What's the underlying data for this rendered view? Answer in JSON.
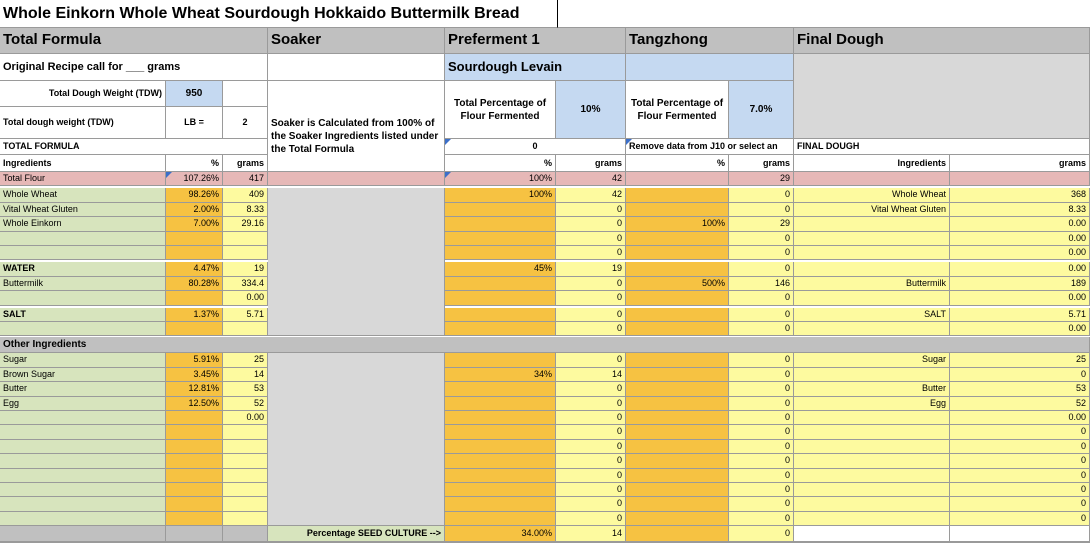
{
  "title": "Whole Einkorn Whole Wheat Sourdough Hokkaido Buttermilk Bread",
  "sections": {
    "total_formula": "Total Formula",
    "soaker": "Soaker",
    "preferment1": "Preferment 1",
    "tangzhong": "Tangzhong",
    "final_dough": "Final Dough"
  },
  "original_recipe": "Original Recipe call for ___ grams",
  "sourdough_levain": "Sourdough Levain",
  "tdw_label": "Total Dough Weight (TDW)",
  "tdw_value": "950",
  "tdw2_label": "Total dough weight (TDW)",
  "tdw2_unit": "LB =",
  "tdw2_value": "2",
  "soaker_note": "Soaker is Calculated from 100% of the Soaker Ingredients listed under the Total Formula",
  "pref_label": "Total Percentage of Flour Fermented",
  "pref_value": "10%",
  "tang_label": "Total Percentage of Flour Fermented",
  "tang_value": "7.0%",
  "total_formula_caps": "TOTAL FORMULA",
  "pref_zero": "0",
  "tang_note": "Remove data from J10 or select an",
  "final_caps": "FINAL DOUGH",
  "col": {
    "ingredients": "Ingredients",
    "pct": "%",
    "grams": "grams"
  },
  "total_flour": {
    "label": "Total Flour",
    "pct": "107.26%",
    "grams": "417",
    "p_pct": "100%",
    "p_grams": "42",
    "t_grams": "29"
  },
  "water": {
    "label": "WATER",
    "pct": "4.47%",
    "grams": "19",
    "p_pct": "45%",
    "p_grams": "19",
    "t_grams": "0",
    "f_grams": "0.00"
  },
  "salt": {
    "label": "SALT",
    "pct": "1.37%",
    "grams": "5.71",
    "p_grams": "0",
    "t_grams": "0",
    "f_name": "SALT",
    "f_grams": "5.71"
  },
  "other": "Other Ingredients",
  "seed_label": "Percentage SEED CULTURE  -->",
  "seed_pct": "34.00%",
  "seed_grams": "14",
  "seed_t": "0",
  "flour_rows": [
    {
      "name": "Whole Wheat",
      "pct": "98.26%",
      "g": "409",
      "pp": "100%",
      "pg": "42",
      "tp": "",
      "tg": "0",
      "fn": "Whole Wheat",
      "fg": "368"
    },
    {
      "name": "Vital Wheat Gluten",
      "pct": "2.00%",
      "g": "8.33",
      "pp": "",
      "pg": "0",
      "tp": "",
      "tg": "0",
      "fn": "Vital Wheat Gluten",
      "fg": "8.33"
    },
    {
      "name": "Whole Einkorn",
      "pct": "7.00%",
      "g": "29.16",
      "pp": "",
      "pg": "0",
      "tp": "100%",
      "tg": "29",
      "fn": "",
      "fg": "0.00"
    },
    {
      "name": "",
      "pct": "",
      "g": "",
      "pp": "",
      "pg": "0",
      "tp": "",
      "tg": "0",
      "fn": "",
      "fg": "0.00"
    },
    {
      "name": "",
      "pct": "",
      "g": "",
      "pp": "",
      "pg": "0",
      "tp": "",
      "tg": "0",
      "fn": "",
      "fg": "0.00"
    }
  ],
  "liquid_rows": [
    {
      "name": "Buttermilk",
      "pct": "80.28%",
      "g": "334.4",
      "pp": "",
      "pg": "0",
      "tp": "500%",
      "tg": "146",
      "fn": "Buttermilk",
      "fg": "189"
    },
    {
      "name": "",
      "pct": "",
      "g": "0.00",
      "pp": "",
      "pg": "0",
      "tp": "",
      "tg": "0",
      "fn": "",
      "fg": "0.00"
    }
  ],
  "salt_extra": {
    "pg": "0",
    "tg": "0",
    "fg": "0.00"
  },
  "other_rows": [
    {
      "name": "Sugar",
      "pct": "5.91%",
      "g": "25",
      "pp": "",
      "pg": "0",
      "tg": "0",
      "fn": "Sugar",
      "fg": "25"
    },
    {
      "name": "Brown Sugar",
      "pct": "3.45%",
      "g": "14",
      "pp": "34%",
      "pg": "14",
      "tg": "0",
      "fn": "",
      "fg": "0"
    },
    {
      "name": "Butter",
      "pct": "12.81%",
      "g": "53",
      "pp": "",
      "pg": "0",
      "tg": "0",
      "fn": "Butter",
      "fg": "53"
    },
    {
      "name": "Egg",
      "pct": "12.50%",
      "g": "52",
      "pp": "",
      "pg": "0",
      "tg": "0",
      "fn": "Egg",
      "fg": "52"
    },
    {
      "name": "",
      "pct": "",
      "g": "0.00",
      "pp": "",
      "pg": "0",
      "tg": "0",
      "fn": "",
      "fg": "0.00"
    },
    {
      "name": "",
      "pct": "",
      "g": "",
      "pp": "",
      "pg": "0",
      "tg": "0",
      "fn": "",
      "fg": "0"
    },
    {
      "name": "",
      "pct": "",
      "g": "",
      "pp": "",
      "pg": "0",
      "tg": "0",
      "fn": "",
      "fg": "0"
    },
    {
      "name": "",
      "pct": "",
      "g": "",
      "pp": "",
      "pg": "0",
      "tg": "0",
      "fn": "",
      "fg": "0"
    },
    {
      "name": "",
      "pct": "",
      "g": "",
      "pp": "",
      "pg": "0",
      "tg": "0",
      "fn": "",
      "fg": "0"
    },
    {
      "name": "",
      "pct": "",
      "g": "",
      "pp": "",
      "pg": "0",
      "tg": "0",
      "fn": "",
      "fg": "0"
    },
    {
      "name": "",
      "pct": "",
      "g": "",
      "pp": "",
      "pg": "0",
      "tg": "0",
      "fn": "",
      "fg": "0"
    },
    {
      "name": "",
      "pct": "",
      "g": "",
      "pp": "",
      "pg": "0",
      "tg": "0",
      "fn": "",
      "fg": "0"
    }
  ]
}
